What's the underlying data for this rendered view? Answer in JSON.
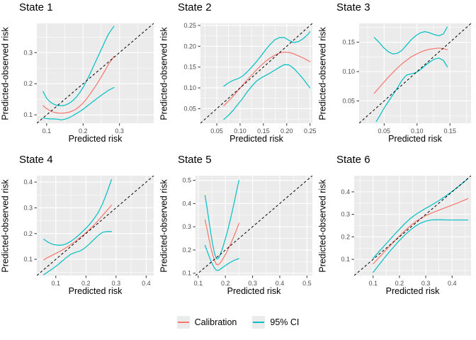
{
  "colors": {
    "calibration": "#F8766D",
    "ci": "#00BFC4",
    "panel_bg": "#EBEBEB",
    "grid_major": "#FFFFFF",
    "grid_minor": "#FFFFFF",
    "identity": "#000000",
    "tick_mark": "#333333",
    "tick_text": "#4D4D4D",
    "text": "#000000",
    "legend_key_bg": "#EBEBEB"
  },
  "legend": {
    "entries": [
      {
        "label": "Calibration",
        "color": "#F8766D"
      },
      {
        "label": "95% CI",
        "color": "#00BFC4"
      }
    ]
  },
  "chart_data": [
    {
      "type": "line",
      "title": "State 1",
      "xlabel": "Predicted risk",
      "ylabel": "Predicted-observed risk",
      "xlim": [
        0.073,
        0.394
      ],
      "ylim": [
        0.073,
        0.394
      ],
      "xticks": [
        0.1,
        0.2,
        0.3
      ],
      "xtick_labels": [
        "0.1",
        "0.2",
        "0.3"
      ],
      "yticks": [
        0.1,
        0.2,
        0.3
      ],
      "ytick_labels": [
        "0.1",
        "0.2",
        "0.3"
      ],
      "identity_line": true,
      "grid": true,
      "series": [
        {
          "name": "Calibration",
          "role": "calibration",
          "color": "#F8766D",
          "x": [
            0.09,
            0.1,
            0.11,
            0.12,
            0.13,
            0.14,
            0.15,
            0.16,
            0.17,
            0.18,
            0.19,
            0.2,
            0.21,
            0.22,
            0.23,
            0.24,
            0.25,
            0.26,
            0.27,
            0.285
          ],
          "y": [
            0.13,
            0.12,
            0.113,
            0.108,
            0.106,
            0.105,
            0.106,
            0.108,
            0.112,
            0.118,
            0.127,
            0.138,
            0.152,
            0.168,
            0.185,
            0.203,
            0.222,
            0.242,
            0.263,
            0.288
          ]
        },
        {
          "name": "95% CI upper",
          "role": "ci-upper",
          "color": "#00BFC4",
          "x": [
            0.09,
            0.1,
            0.11,
            0.12,
            0.13,
            0.14,
            0.15,
            0.16,
            0.17,
            0.18,
            0.19,
            0.2,
            0.21,
            0.22,
            0.23,
            0.24,
            0.25,
            0.26,
            0.27,
            0.285
          ],
          "y": [
            0.175,
            0.153,
            0.141,
            0.134,
            0.13,
            0.129,
            0.131,
            0.136,
            0.144,
            0.155,
            0.17,
            0.188,
            0.21,
            0.234,
            0.26,
            0.285,
            0.31,
            0.336,
            0.36,
            0.385
          ]
        },
        {
          "name": "95% CI lower",
          "role": "ci-lower",
          "color": "#00BFC4",
          "x": [
            0.09,
            0.1,
            0.11,
            0.12,
            0.13,
            0.14,
            0.15,
            0.16,
            0.17,
            0.18,
            0.19,
            0.2,
            0.21,
            0.22,
            0.23,
            0.24,
            0.25,
            0.26,
            0.27,
            0.285
          ],
          "y": [
            0.09,
            0.088,
            0.087,
            0.087,
            0.086,
            0.084,
            0.086,
            0.09,
            0.096,
            0.103,
            0.11,
            0.118,
            0.127,
            0.136,
            0.145,
            0.154,
            0.163,
            0.171,
            0.179,
            0.188
          ]
        }
      ]
    },
    {
      "type": "line",
      "title": "State 2",
      "xlabel": "Predicted risk",
      "ylabel": "Predicted-observed risk",
      "xlim": [
        0.015,
        0.255
      ],
      "ylim": [
        0.015,
        0.255
      ],
      "xticks": [
        0.05,
        0.1,
        0.15,
        0.2,
        0.25
      ],
      "xtick_labels": [
        "0.05",
        "0.10",
        "0.15",
        "0.20",
        "0.25"
      ],
      "yticks": [
        0.05,
        0.1,
        0.15,
        0.2,
        0.25
      ],
      "ytick_labels": [
        "0.05",
        "0.10",
        "0.15",
        "0.20",
        "0.25"
      ],
      "identity_line": true,
      "grid": true,
      "series": [
        {
          "name": "Calibration",
          "role": "calibration",
          "color": "#F8766D",
          "x": [
            0.065,
            0.075,
            0.085,
            0.095,
            0.105,
            0.115,
            0.125,
            0.135,
            0.145,
            0.155,
            0.165,
            0.175,
            0.185,
            0.195,
            0.205,
            0.215,
            0.225,
            0.235,
            0.245,
            0.25
          ],
          "y": [
            0.057,
            0.068,
            0.08,
            0.093,
            0.106,
            0.119,
            0.131,
            0.143,
            0.154,
            0.164,
            0.172,
            0.179,
            0.184,
            0.186,
            0.185,
            0.182,
            0.177,
            0.172,
            0.166,
            0.163
          ]
        },
        {
          "name": "95% CI upper",
          "role": "ci-upper",
          "color": "#00BFC4",
          "x": [
            0.065,
            0.075,
            0.085,
            0.095,
            0.105,
            0.115,
            0.125,
            0.135,
            0.145,
            0.155,
            0.165,
            0.175,
            0.185,
            0.195,
            0.205,
            0.215,
            0.225,
            0.235,
            0.245,
            0.25
          ],
          "y": [
            0.104,
            0.112,
            0.118,
            0.122,
            0.128,
            0.138,
            0.15,
            0.163,
            0.177,
            0.192,
            0.205,
            0.216,
            0.221,
            0.221,
            0.214,
            0.209,
            0.211,
            0.218,
            0.228,
            0.235
          ]
        },
        {
          "name": "95% CI lower",
          "role": "ci-lower",
          "color": "#00BFC4",
          "x": [
            0.065,
            0.075,
            0.085,
            0.095,
            0.105,
            0.115,
            0.125,
            0.135,
            0.145,
            0.155,
            0.165,
            0.175,
            0.185,
            0.195,
            0.205,
            0.215,
            0.225,
            0.235,
            0.245,
            0.25
          ],
          "y": [
            0.024,
            0.034,
            0.046,
            0.06,
            0.074,
            0.09,
            0.104,
            0.116,
            0.124,
            0.13,
            0.136,
            0.143,
            0.15,
            0.156,
            0.155,
            0.147,
            0.135,
            0.122,
            0.107,
            0.1
          ]
        }
      ]
    },
    {
      "type": "line",
      "title": "State 3",
      "xlabel": "Predicted risk",
      "ylabel": "Predicted-observed risk",
      "xlim": [
        0.012,
        0.182
      ],
      "ylim": [
        0.012,
        0.182
      ],
      "xticks": [
        0.05,
        0.1,
        0.15
      ],
      "xtick_labels": [
        "0.05",
        "0.10",
        "0.15"
      ],
      "yticks": [
        0.05,
        0.1,
        0.15
      ],
      "ytick_labels": [
        "0.05",
        "0.10",
        "0.15"
      ],
      "identity_line": true,
      "grid": true,
      "series": [
        {
          "name": "Calibration",
          "role": "calibration",
          "color": "#F8766D",
          "x": [
            0.035,
            0.042,
            0.049,
            0.056,
            0.063,
            0.07,
            0.077,
            0.084,
            0.091,
            0.098,
            0.105,
            0.112,
            0.119,
            0.126,
            0.133,
            0.14,
            0.146
          ],
          "y": [
            0.063,
            0.072,
            0.081,
            0.09,
            0.098,
            0.106,
            0.113,
            0.119,
            0.125,
            0.129,
            0.133,
            0.136,
            0.138,
            0.139,
            0.14,
            0.139,
            0.137
          ]
        },
        {
          "name": "95% CI upper",
          "role": "ci-upper",
          "color": "#00BFC4",
          "x": [
            0.035,
            0.042,
            0.049,
            0.056,
            0.063,
            0.07,
            0.077,
            0.084,
            0.091,
            0.098,
            0.105,
            0.112,
            0.119,
            0.126,
            0.133,
            0.14,
            0.146
          ],
          "y": [
            0.158,
            0.15,
            0.141,
            0.134,
            0.13,
            0.131,
            0.136,
            0.145,
            0.154,
            0.161,
            0.166,
            0.168,
            0.166,
            0.163,
            0.161,
            0.164,
            0.176
          ]
        },
        {
          "name": "95% CI lower",
          "role": "ci-lower",
          "color": "#00BFC4",
          "x": [
            0.038,
            0.044,
            0.05,
            0.056,
            0.063,
            0.07,
            0.077,
            0.084,
            0.091,
            0.098,
            0.105,
            0.112,
            0.119,
            0.126,
            0.133,
            0.14,
            0.146
          ],
          "y": [
            0.015,
            0.026,
            0.038,
            0.048,
            0.06,
            0.072,
            0.085,
            0.094,
            0.096,
            0.098,
            0.103,
            0.11,
            0.116,
            0.121,
            0.123,
            0.119,
            0.108
          ]
        }
      ]
    },
    {
      "type": "line",
      "title": "State 4",
      "xlabel": "Predicted risk",
      "ylabel": "Predicted-observed risk",
      "xlim": [
        0.037,
        0.425
      ],
      "ylim": [
        0.037,
        0.425
      ],
      "xticks": [
        0.1,
        0.2,
        0.3,
        0.4
      ],
      "xtick_labels": [
        "0.1",
        "0.2",
        "0.3",
        "0.4"
      ],
      "yticks": [
        0.1,
        0.2,
        0.3,
        0.4
      ],
      "ytick_labels": [
        "0.1",
        "0.2",
        "0.3",
        "0.4"
      ],
      "identity_line": true,
      "grid": true,
      "series": [
        {
          "name": "Calibration",
          "role": "calibration",
          "color": "#F8766D",
          "x": [
            0.06,
            0.075,
            0.09,
            0.105,
            0.12,
            0.135,
            0.15,
            0.165,
            0.18,
            0.195,
            0.21,
            0.225,
            0.24,
            0.255,
            0.27,
            0.285
          ],
          "y": [
            0.098,
            0.108,
            0.117,
            0.126,
            0.135,
            0.146,
            0.157,
            0.17,
            0.184,
            0.198,
            0.214,
            0.231,
            0.25,
            0.27,
            0.29,
            0.31
          ]
        },
        {
          "name": "95% CI upper",
          "role": "ci-upper",
          "color": "#00BFC4",
          "x": [
            0.06,
            0.075,
            0.09,
            0.105,
            0.12,
            0.135,
            0.15,
            0.165,
            0.18,
            0.195,
            0.21,
            0.225,
            0.24,
            0.255,
            0.27,
            0.285
          ],
          "y": [
            0.178,
            0.166,
            0.158,
            0.155,
            0.155,
            0.16,
            0.17,
            0.183,
            0.198,
            0.215,
            0.233,
            0.255,
            0.28,
            0.315,
            0.36,
            0.41
          ]
        },
        {
          "name": "95% CI lower",
          "role": "ci-lower",
          "color": "#00BFC4",
          "x": [
            0.06,
            0.075,
            0.09,
            0.105,
            0.12,
            0.135,
            0.15,
            0.165,
            0.18,
            0.195,
            0.21,
            0.225,
            0.24,
            0.255,
            0.27,
            0.285
          ],
          "y": [
            0.04,
            0.052,
            0.064,
            0.077,
            0.092,
            0.107,
            0.12,
            0.127,
            0.132,
            0.143,
            0.158,
            0.175,
            0.192,
            0.205,
            0.208,
            0.208
          ]
        }
      ]
    },
    {
      "type": "line",
      "title": "State 5",
      "xlabel": "Predicted risk",
      "ylabel": "Predicted-observed risk",
      "xlim": [
        0.09,
        0.52
      ],
      "ylim": [
        0.09,
        0.52
      ],
      "xticks": [
        0.1,
        0.2,
        0.3,
        0.4,
        0.5
      ],
      "xtick_labels": [
        "0.1",
        "0.2",
        "0.3",
        "0.4",
        "0.5"
      ],
      "yticks": [
        0.1,
        0.2,
        0.3,
        0.4,
        0.5
      ],
      "ytick_labels": [
        "0.1",
        "0.2",
        "0.3",
        "0.4",
        "0.5"
      ],
      "identity_line": true,
      "grid": true,
      "series": [
        {
          "name": "Calibration",
          "role": "calibration",
          "color": "#F8766D",
          "x": [
            0.125,
            0.132,
            0.139,
            0.146,
            0.153,
            0.16,
            0.167,
            0.174,
            0.181,
            0.19,
            0.2,
            0.21,
            0.22,
            0.23,
            0.24,
            0.25
          ],
          "y": [
            0.33,
            0.292,
            0.252,
            0.213,
            0.18,
            0.155,
            0.138,
            0.136,
            0.145,
            0.16,
            0.18,
            0.203,
            0.228,
            0.255,
            0.284,
            0.315
          ]
        },
        {
          "name": "95% CI upper",
          "role": "ci-upper",
          "color": "#00BFC4",
          "x": [
            0.125,
            0.132,
            0.139,
            0.146,
            0.153,
            0.16,
            0.167,
            0.174,
            0.181,
            0.19,
            0.2,
            0.21,
            0.22,
            0.23,
            0.24,
            0.25
          ],
          "y": [
            0.435,
            0.385,
            0.33,
            0.275,
            0.225,
            0.186,
            0.162,
            0.163,
            0.18,
            0.21,
            0.248,
            0.292,
            0.34,
            0.392,
            0.447,
            0.5
          ]
        },
        {
          "name": "95% CI lower",
          "role": "ci-lower",
          "color": "#00BFC4",
          "x": [
            0.125,
            0.132,
            0.139,
            0.146,
            0.153,
            0.16,
            0.167,
            0.174,
            0.181,
            0.19,
            0.2,
            0.21,
            0.22,
            0.23,
            0.24,
            0.25
          ],
          "y": [
            0.22,
            0.198,
            0.176,
            0.155,
            0.136,
            0.122,
            0.113,
            0.112,
            0.117,
            0.125,
            0.133,
            0.141,
            0.148,
            0.154,
            0.159,
            0.163
          ]
        }
      ]
    },
    {
      "type": "line",
      "title": "State 6",
      "xlabel": "Predicted risk",
      "ylabel": "Predicted-observed risk",
      "xlim": [
        0.028,
        0.472
      ],
      "ylim": [
        0.028,
        0.472
      ],
      "xticks": [
        0.1,
        0.2,
        0.3,
        0.4
      ],
      "xtick_labels": [
        "0.1",
        "0.2",
        "0.3",
        "0.4"
      ],
      "yticks": [
        0.1,
        0.2,
        0.3,
        0.4
      ],
      "ytick_labels": [
        "0.1",
        "0.2",
        "0.3",
        "0.4"
      ],
      "identity_line": true,
      "grid": true,
      "series": [
        {
          "name": "Calibration",
          "role": "calibration",
          "color": "#F8766D",
          "x": [
            0.1,
            0.12,
            0.14,
            0.16,
            0.18,
            0.2,
            0.22,
            0.24,
            0.26,
            0.28,
            0.3,
            0.32,
            0.34,
            0.36,
            0.38,
            0.4,
            0.42,
            0.44,
            0.46
          ],
          "y": [
            0.08,
            0.105,
            0.13,
            0.155,
            0.18,
            0.204,
            0.227,
            0.248,
            0.266,
            0.281,
            0.294,
            0.305,
            0.314,
            0.323,
            0.332,
            0.341,
            0.35,
            0.36,
            0.37
          ]
        },
        {
          "name": "95% CI upper",
          "role": "ci-upper",
          "color": "#00BFC4",
          "x": [
            0.1,
            0.12,
            0.14,
            0.16,
            0.18,
            0.2,
            0.22,
            0.24,
            0.26,
            0.28,
            0.3,
            0.32,
            0.34,
            0.36,
            0.38,
            0.4,
            0.42,
            0.44,
            0.46
          ],
          "y": [
            0.105,
            0.131,
            0.157,
            0.183,
            0.209,
            0.234,
            0.258,
            0.28,
            0.298,
            0.313,
            0.327,
            0.34,
            0.354,
            0.369,
            0.385,
            0.402,
            0.42,
            0.439,
            0.458
          ]
        },
        {
          "name": "95% CI lower",
          "role": "ci-lower",
          "color": "#00BFC4",
          "x": [
            0.1,
            0.12,
            0.14,
            0.16,
            0.18,
            0.2,
            0.22,
            0.24,
            0.26,
            0.28,
            0.3,
            0.32,
            0.34,
            0.36,
            0.38,
            0.4,
            0.42,
            0.44,
            0.46
          ],
          "y": [
            0.042,
            0.072,
            0.102,
            0.131,
            0.158,
            0.184,
            0.208,
            0.229,
            0.247,
            0.261,
            0.27,
            0.275,
            0.276,
            0.276,
            0.275,
            0.275,
            0.275,
            0.275,
            0.275
          ]
        }
      ]
    }
  ]
}
